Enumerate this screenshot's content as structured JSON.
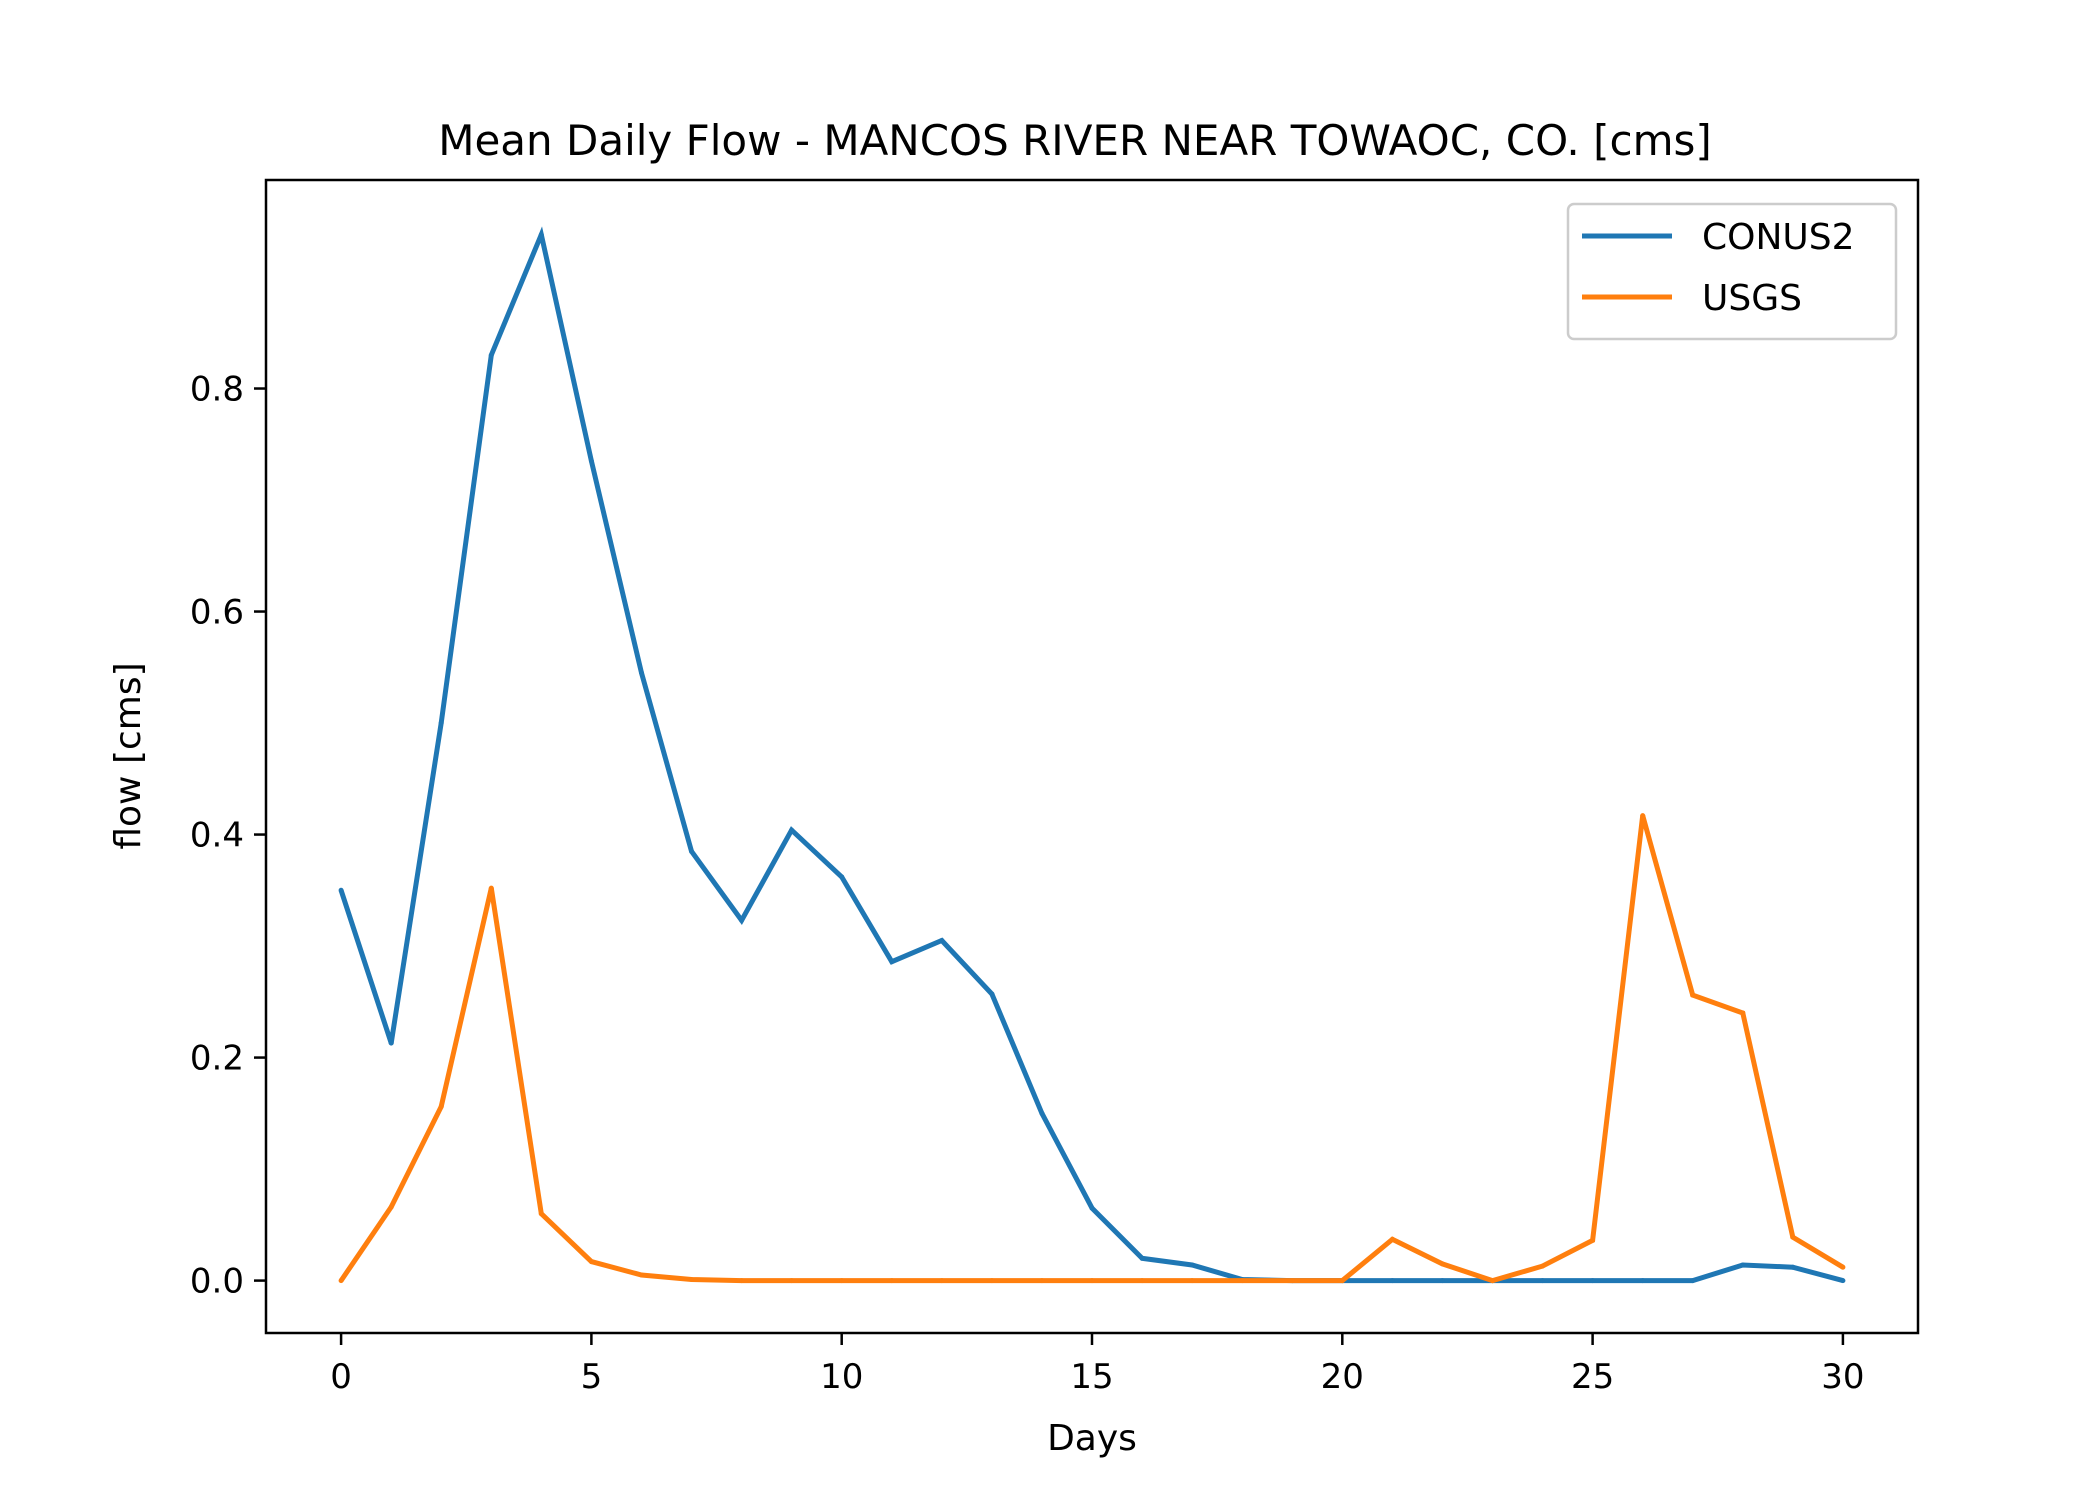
{
  "chart_data": {
    "type": "line",
    "title": "Mean Daily Flow - MANCOS RIVER NEAR TOWAOC, CO. [cms]",
    "xlabel": "Days",
    "ylabel": "flow [cms]",
    "xlim": [
      -1.5,
      31.5
    ],
    "ylim": [
      -0.047,
      0.987
    ],
    "xticks": [
      0,
      5,
      10,
      15,
      20,
      25,
      30
    ],
    "yticks": [
      0.0,
      0.2,
      0.4,
      0.6,
      0.8
    ],
    "xtick_labels": [
      "0",
      "5",
      "10",
      "15",
      "20",
      "25",
      "30"
    ],
    "ytick_labels": [
      "0.0",
      "0.2",
      "0.4",
      "0.6",
      "0.8"
    ],
    "grid": false,
    "legend_position": "top-right",
    "x": [
      0,
      1,
      2,
      3,
      4,
      5,
      6,
      7,
      8,
      9,
      10,
      11,
      12,
      13,
      14,
      15,
      16,
      17,
      18,
      19,
      20,
      21,
      22,
      23,
      24,
      25,
      26,
      27,
      28,
      29,
      30
    ],
    "series": [
      {
        "name": "CONUS2",
        "color": "#1f77b4",
        "values": [
          0.35,
          0.213,
          0.5,
          0.83,
          0.938,
          0.735,
          0.545,
          0.385,
          0.323,
          0.404,
          0.362,
          0.286,
          0.305,
          0.257,
          0.15,
          0.065,
          0.02,
          0.014,
          0.001,
          0.0,
          0.0,
          0.0,
          0.0,
          0.0,
          0.0,
          0.0,
          0.0,
          0.0,
          0.014,
          0.012,
          0.0
        ]
      },
      {
        "name": "USGS",
        "color": "#ff7f0e",
        "values": [
          0.0,
          0.066,
          0.156,
          0.352,
          0.06,
          0.017,
          0.005,
          0.001,
          0.0,
          0.0,
          0.0,
          0.0,
          0.0,
          0.0,
          0.0,
          0.0,
          0.0,
          0.0,
          0.0,
          0.0,
          0.0,
          0.037,
          0.015,
          0.0,
          0.013,
          0.036,
          0.417,
          0.256,
          0.24,
          0.039,
          0.012
        ]
      }
    ]
  }
}
